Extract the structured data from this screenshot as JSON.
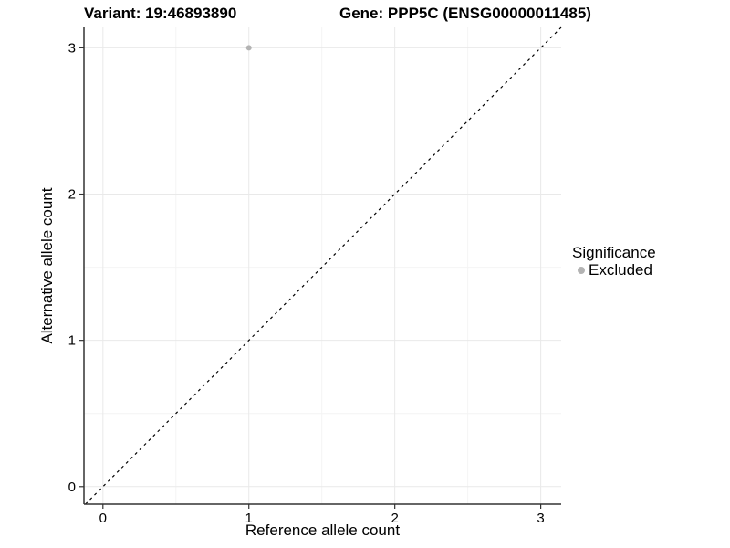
{
  "header": {
    "title_left": "Variant: 19:46893890",
    "title_right": "Gene: PPP5C (ENSG00000011485)"
  },
  "chart_data": {
    "type": "scatter",
    "title_left": "Variant: 19:46893890",
    "title_right": "Gene: PPP5C (ENSG00000011485)",
    "xlabel": "Reference allele count",
    "ylabel": "Alternative allele count",
    "xlim": [
      -0.13,
      3.14
    ],
    "ylim": [
      -0.12,
      3.14
    ],
    "xticks": [
      0,
      1,
      2,
      3
    ],
    "yticks": [
      0,
      1,
      2,
      3
    ],
    "grid": {
      "major": true,
      "minor": true,
      "x_minor_positions": [
        0.5,
        1.5,
        2.5
      ],
      "y_minor_positions": [
        0.5,
        1.5,
        2.5
      ],
      "major_color": "#e9e9e9",
      "minor_color": "#f4f4f4"
    },
    "series": [
      {
        "name": "Excluded",
        "color": "#b3b3b3",
        "points": [
          {
            "x": 1,
            "y": 3
          }
        ]
      }
    ],
    "reference_line": {
      "type": "identity",
      "style": "dashed",
      "color": "#000000"
    },
    "legend": {
      "title": "Significance",
      "position": "right",
      "entries": [
        {
          "label": "Excluded",
          "color": "#b3b3b3"
        }
      ]
    },
    "colors": {
      "background": "#ffffff",
      "axis_line": "#333333",
      "text": "#000000"
    }
  }
}
